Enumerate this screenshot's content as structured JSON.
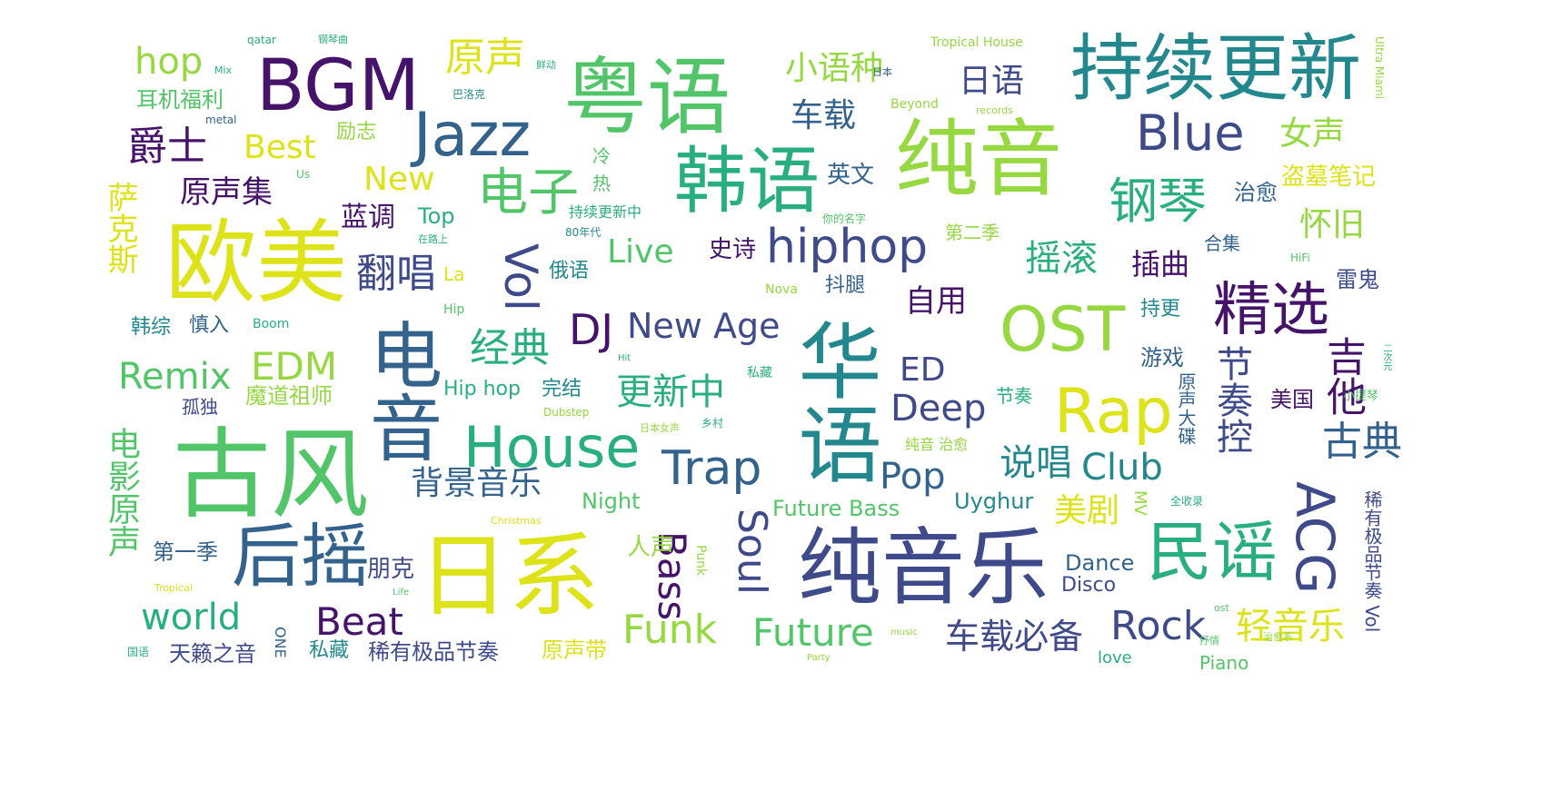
{
  "palette": {
    "dark_purple": "#46136a",
    "indigo": "#3f4a8a",
    "blue": "#33638d",
    "teal": "#23888e",
    "sea_green": "#29af7f",
    "green": "#52c569",
    "lime": "#95d840",
    "yellow": "#dde318",
    "pale_green": "#a8db34"
  },
  "words": {
    "w1": "纯音乐",
    "w2": "日系",
    "w3": "古风",
    "w4": "欧美",
    "w5": "粤语",
    "w6": "韩语",
    "w7": "纯音",
    "w8": "持续更新",
    "w9": "华语",
    "w10": "电音",
    "w11": "BGM",
    "w12": "Jazz",
    "w13": "后摇",
    "w14": "民谣",
    "w15": "OST",
    "w16": "Rap",
    "w17": "House",
    "w18": "精选",
    "w19": "hiphop",
    "w20": "钢琴",
    "w21": "电子",
    "w22": "Blue",
    "w23": "ACG",
    "w24": "Vol",
    "w25": "Trap",
    "w26": "原声",
    "w27": "Funk",
    "w28": "Future",
    "w29": "Rock",
    "w30": "Beat",
    "w31": "Soul",
    "w32": "Bass",
    "w33": "爵士",
    "w34": "经典",
    "w35": "翻唱",
    "w36": "DJ",
    "w37": "New Age",
    "w38": "EDM",
    "w39": "Remix",
    "w40": "Deep",
    "w41": "Pop",
    "w42": "Club",
    "w43": "古典",
    "w44": "吉他",
    "w45": "节奏控",
    "w46": "说唱",
    "w47": "轻音乐",
    "w48": "车载必备",
    "w49": "更新中",
    "w50": "背景音乐",
    "w51": "电影原声",
    "w52": "萨克斯",
    "w53": "world",
    "w54": "hop",
    "w55": "原声集",
    "w56": "摇滚",
    "w57": "小语种",
    "w58": "日语",
    "w59": "车载",
    "w60": "Best",
    "w61": "New",
    "w62": "Live",
    "w63": "女声",
    "w64": "怀旧",
    "w65": "美剧",
    "w66": "自用",
    "w67": "ED",
    "w68": "插曲",
    "w69": "蓝调",
    "w70": "英文",
    "w71": "史诗",
    "w72": "Top",
    "w73": "耳机福利",
    "w74": "励志",
    "w75": "盗墓笔记",
    "w76": "治愈",
    "w77": "雷鬼",
    "w78": "游戏",
    "w79": "美国",
    "w80": "魔道祖师",
    "w81": "孤独",
    "w82": "第一季",
    "w83": "朋克",
    "w84": "人声",
    "w85": "天籁之音",
    "w86": "私藏",
    "w87": "稀有极品节奏",
    "w88": "原声带",
    "w89": "Piano",
    "w90": "Disco",
    "w91": "Dance",
    "w92": "Future Bass",
    "w93": "Uyghur",
    "w94": "Night",
    "w95": "Hip hop",
    "w96": "完结",
    "w97": "韩综",
    "w98": "慎入",
    "w99": "俄语",
    "w100": "抖腿",
    "w101": "持更",
    "w102": "合集",
    "w103": "第二季",
    "w104": "持续更新中",
    "w105": "节奏",
    "w106": "稀有极品节奏 Vol",
    "w107": "原声大碟",
    "w108": "MV",
    "w109": "ONE",
    "w110": "love",
    "w111": "Tropical House",
    "w112": "Beyond",
    "w113": "Boom",
    "w114": "Hip",
    "w115": "La",
    "w116": "Nova",
    "w117": "Dubstep",
    "w118": "HiFi",
    "w119": "Us",
    "w120": "Hit",
    "w121": "Punk",
    "w122": "纯音 治愈",
    "w123": "80年代",
    "w124": "metal",
    "w125": "qatar",
    "w126": "records",
    "w127": "Mix",
    "w128": "music",
    "w129": "Christmas",
    "w130": "小提琴",
    "w131": "全收录",
    "w132": "Life",
    "w133": "Tropical",
    "w134": "Party",
    "w135": "Ultra Miami",
    "w136": "ONE",
    "w137": "冷",
    "w138": "热",
    "w139": "日本",
    "w140": "国语",
    "w141": "鲜动",
    "w142": "二次元",
    "w143": "日本女声",
    "w144": "乡村",
    "w145": "私藏",
    "w146": "ost",
    "w147": "钢琴曲",
    "w148": "巴洛克",
    "w149": "你的名字",
    "w150": "在路上",
    "w151": "抒情",
    "w152": "治愈系"
  }
}
